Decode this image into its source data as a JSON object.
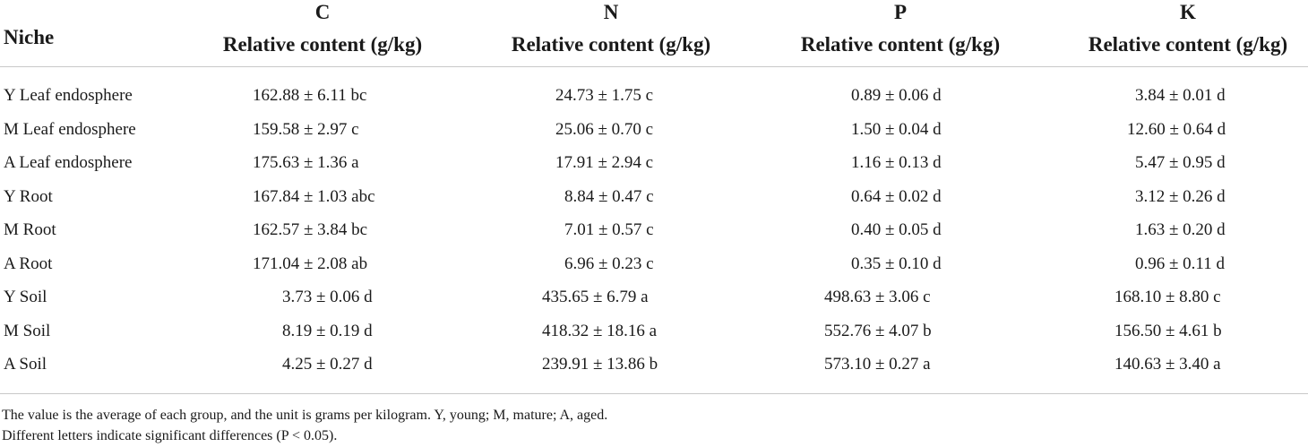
{
  "table": {
    "header": {
      "niche": "Niche",
      "columns": [
        {
          "letter": "C",
          "label": "Relative content (g/kg)"
        },
        {
          "letter": "N",
          "label": "Relative content (g/kg)"
        },
        {
          "letter": "P",
          "label": "Relative content (g/kg)"
        },
        {
          "letter": "K",
          "label": "Relative content (g/kg)"
        }
      ]
    },
    "rows": [
      {
        "niche": "Y Leaf endosphere",
        "c": "162.88 ± 6.11 bc",
        "n": "24.73 ± 1.75 c",
        "p": "0.89 ± 0.06 d",
        "k": "3.84 ± 0.01 d"
      },
      {
        "niche": "M Leaf endosphere",
        "c": "159.58 ± 2.97 c",
        "n": "25.06 ± 0.70 c",
        "p": "1.50 ± 0.04 d",
        "k": "12.60 ± 0.64 d"
      },
      {
        "niche": "A Leaf endosphere",
        "c": "175.63 ± 1.36 a",
        "n": "17.91 ± 2.94 c",
        "p": "1.16 ± 0.13 d",
        "k": "5.47 ± 0.95 d"
      },
      {
        "niche": "Y Root",
        "c": "167.84 ± 1.03 abc",
        "n": "8.84 ± 0.47 c",
        "p": "0.64 ± 0.02 d",
        "k": "3.12 ± 0.26 d"
      },
      {
        "niche": "M Root",
        "c": "162.57 ± 3.84 bc",
        "n": "7.01 ± 0.57 c",
        "p": "0.40 ± 0.05 d",
        "k": "1.63 ± 0.20 d"
      },
      {
        "niche": "A Root",
        "c": "171.04 ± 2.08 ab",
        "n": "6.96 ± 0.23 c",
        "p": "0.35 ± 0.10 d",
        "k": "0.96 ± 0.11 d"
      },
      {
        "niche": "Y Soil",
        "c": "3.73 ± 0.06 d",
        "n": "435.65 ± 6.79 a",
        "p": "498.63 ± 3.06 c",
        "k": "168.10 ± 8.80 c"
      },
      {
        "niche": "M Soil",
        "c": "8.19 ± 0.19 d",
        "n": "418.32 ± 18.16 a",
        "p": "552.76 ± 4.07 b",
        "k": "156.50 ± 4.61 b"
      },
      {
        "niche": "A Soil",
        "c": "4.25 ± 0.27 d",
        "n": "239.91 ± 13.86 b",
        "p": "573.10 ± 0.27 a",
        "k": "140.63 ± 3.40 a"
      }
    ],
    "notes": [
      "The value is the average of each group, and the unit is grams per kilogram. Y, young; M, mature; A, aged.",
      "Different letters indicate significant differences (P < 0.05)."
    ]
  }
}
